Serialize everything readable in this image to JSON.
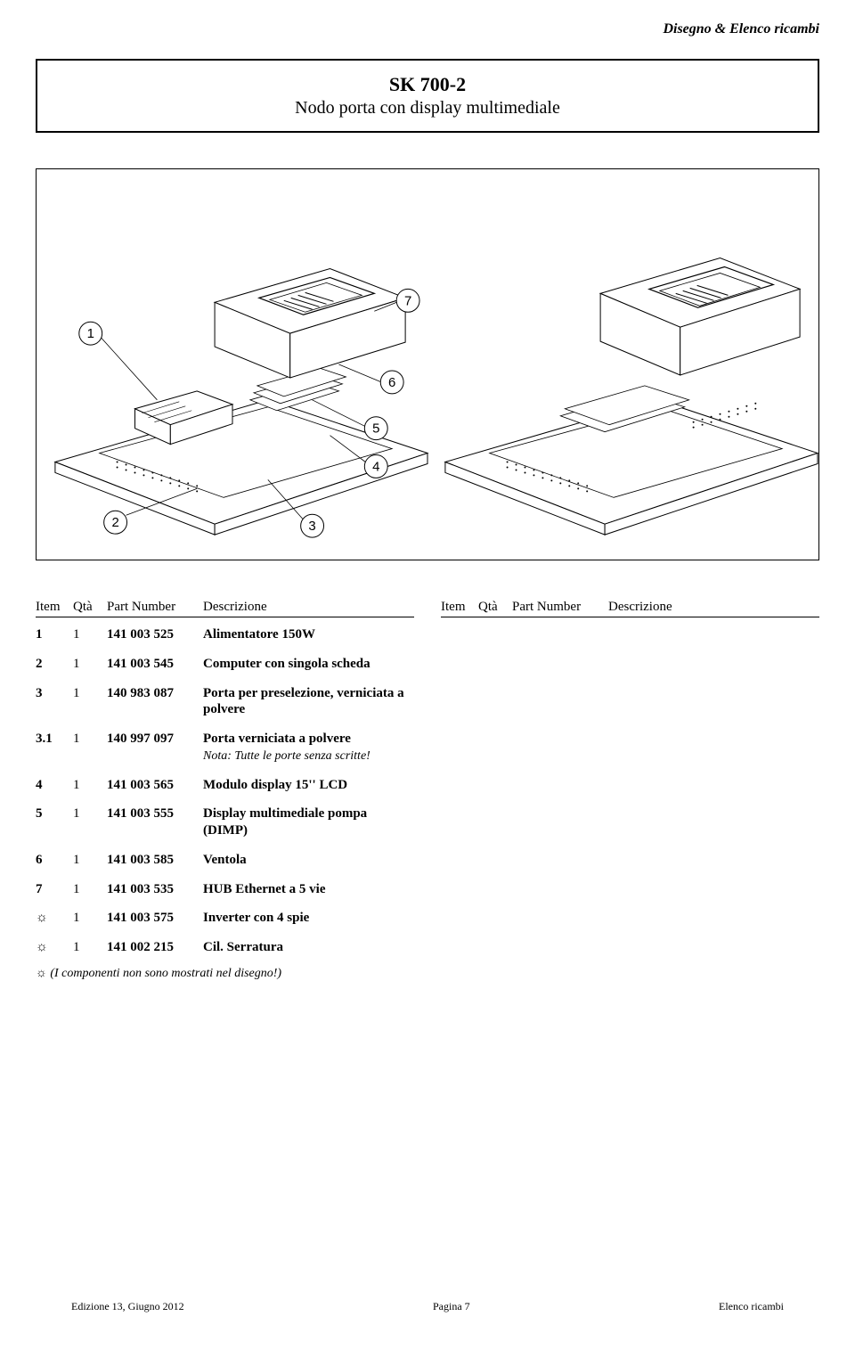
{
  "header": {
    "section": "Disegno & Elenco ricambi"
  },
  "title": {
    "main": "SK 700-2",
    "sub": "Nodo porta con display multimediale"
  },
  "diagram": {
    "callouts": [
      "1",
      "2",
      "3",
      "4",
      "5",
      "6",
      "7"
    ],
    "stroke": "#000000",
    "fill": "#ffffff"
  },
  "table": {
    "headers": {
      "item": "Item",
      "qty": "Qtà",
      "pn": "Part Number",
      "desc": "Descrizione"
    }
  },
  "parts": [
    {
      "item": "1",
      "qty": "1",
      "pn": "141 003 525",
      "desc": "Alimentatore 150W"
    },
    {
      "item": "2",
      "qty": "1",
      "pn": "141 003 545",
      "desc": "Computer con singola scheda"
    },
    {
      "item": "3",
      "qty": "1",
      "pn": "140 983 087",
      "desc": "Porta per preselezione, verniciata a polvere"
    },
    {
      "item": "3.1",
      "qty": "1",
      "pn": "140 997 097",
      "desc": "Porta verniciata a polvere",
      "note": "Nota: Tutte le porte senza scritte!"
    },
    {
      "item": "4",
      "qty": "1",
      "pn": "141 003 565",
      "desc": "Modulo display 15'' LCD"
    },
    {
      "item": "5",
      "qty": "1",
      "pn": "141 003 555",
      "desc": "Display multimediale pompa (DIMP)"
    },
    {
      "item": "6",
      "qty": "1",
      "pn": "141 003 585",
      "desc": "Ventola"
    },
    {
      "item": "7",
      "qty": "1",
      "pn": "141 003 535",
      "desc": "HUB Ethernet a 5 vie"
    },
    {
      "item": "☼",
      "qty": "1",
      "pn": "141 003 575",
      "desc": "Inverter con 4 spie"
    },
    {
      "item": "☼",
      "qty": "1",
      "pn": "141 002 215",
      "desc": "Cil. Serratura"
    }
  ],
  "footnote": {
    "marker": "☼",
    "text": "(I componenti non sono mostrati nel disegno!)"
  },
  "footer": {
    "left": "Edizione  13, Giugno 2012",
    "center": "Pagina 7",
    "right": "Elenco ricambi"
  }
}
